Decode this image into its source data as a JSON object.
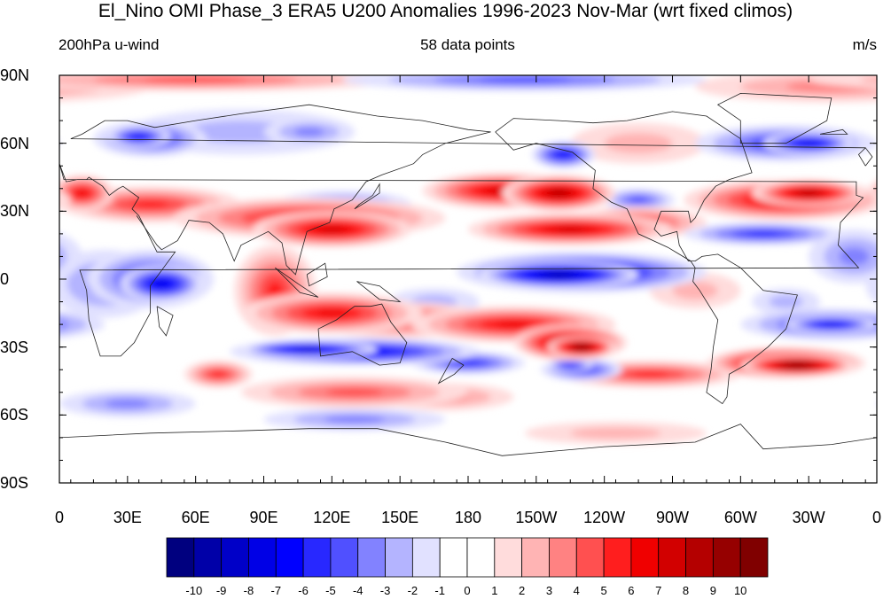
{
  "title": "El_Nino OMI Phase_3 ERA5 U200 Anomalies 1996-2023 Nov-Mar (wrt fixed climos)",
  "subtitle_left": "200hPa u-wind",
  "subtitle_center": "58 data points",
  "subtitle_right": "m/s",
  "map": {
    "lat_labels": [
      "90N",
      "60N",
      "30N",
      "0",
      "30S",
      "60S",
      "90S"
    ],
    "lon_labels": [
      "0",
      "30E",
      "60E",
      "90E",
      "120E",
      "150E",
      "180",
      "150W",
      "120W",
      "90W",
      "60W",
      "30W",
      "0"
    ],
    "projection": "cylindrical equidistant",
    "coastlines": true
  },
  "colorbar": {
    "levels": [
      "-10",
      "-9",
      "-8",
      "-7",
      "-6",
      "-5",
      "-4",
      "-3",
      "-2",
      "-1",
      "0",
      "1",
      "2",
      "3",
      "4",
      "5",
      "6",
      "7",
      "8",
      "9",
      "10"
    ],
    "colors": [
      "#00007f",
      "#0000a8",
      "#0000c8",
      "#0000e6",
      "#0000ff",
      "#2828ff",
      "#5050ff",
      "#8282ff",
      "#b4b4ff",
      "#e1e1ff",
      "#ffffff",
      "#ffffff",
      "#ffdcdc",
      "#ffb4b4",
      "#ff8282",
      "#ff5050",
      "#ff1e1e",
      "#f00000",
      "#d20000",
      "#b40000",
      "#960000",
      "#800000"
    ]
  }
}
